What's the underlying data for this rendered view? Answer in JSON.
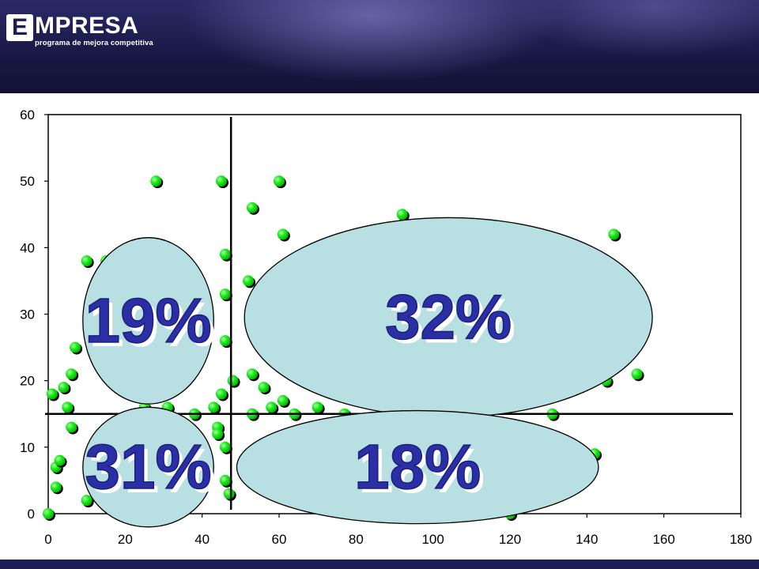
{
  "header": {
    "logo_letter": "E",
    "logo_word": "MPRESA",
    "logo_subtitle": "programa de mejora competitiva"
  },
  "colors": {
    "header_bg": "#1c1b4c",
    "point": "#00ee00",
    "ellipse_fill": "#b8dfe2",
    "percent_label": "#2b2fa6"
  },
  "chart_data": {
    "type": "scatter",
    "title": "",
    "xlabel": "",
    "ylabel": "",
    "xlim": [
      0,
      180
    ],
    "ylim": [
      0,
      60
    ],
    "x_ticks": [
      "0",
      "20",
      "40",
      "60",
      "80",
      "100",
      "120",
      "140",
      "160",
      "180"
    ],
    "y_ticks": [
      "0",
      "10",
      "20",
      "30",
      "40",
      "50",
      "60"
    ],
    "grid": false,
    "reference_lines": {
      "x": 47.5,
      "y": 15
    },
    "points": [
      [
        28,
        50
      ],
      [
        45,
        50
      ],
      [
        60,
        50
      ],
      [
        53,
        46
      ],
      [
        92,
        45
      ],
      [
        61,
        42
      ],
      [
        147,
        42
      ],
      [
        10,
        38
      ],
      [
        15,
        38
      ],
      [
        46,
        39
      ],
      [
        52,
        35
      ],
      [
        46,
        33
      ],
      [
        7,
        25
      ],
      [
        46,
        26
      ],
      [
        1,
        18
      ],
      [
        4,
        19
      ],
      [
        6,
        21
      ],
      [
        5,
        16
      ],
      [
        6,
        13
      ],
      [
        2,
        7
      ],
      [
        3,
        8
      ],
      [
        2,
        4
      ],
      [
        0,
        0
      ],
      [
        25,
        16
      ],
      [
        31,
        16
      ],
      [
        38,
        15
      ],
      [
        43,
        16
      ],
      [
        45,
        18
      ],
      [
        48,
        20
      ],
      [
        44,
        13
      ],
      [
        44,
        12
      ],
      [
        53,
        21
      ],
      [
        56,
        19
      ],
      [
        53,
        15
      ],
      [
        58,
        16
      ],
      [
        61,
        17
      ],
      [
        64,
        15
      ],
      [
        70,
        16
      ],
      [
        77,
        15
      ],
      [
        46,
        10
      ],
      [
        47,
        3
      ],
      [
        46,
        5
      ],
      [
        10,
        2
      ],
      [
        131,
        15
      ],
      [
        145,
        20
      ],
      [
        153,
        21
      ],
      [
        130,
        12
      ],
      [
        142,
        9
      ],
      [
        120,
        0
      ]
    ],
    "segments": [
      {
        "label": "19%",
        "cx": 26,
        "cy": 29,
        "rx": 17,
        "ry": 12.5
      },
      {
        "label": "32%",
        "cx": 104,
        "cy": 29.5,
        "rx": 53,
        "ry": 15
      },
      {
        "label": "31%",
        "cx": 26,
        "cy": 7,
        "rx": 17,
        "ry": 9
      },
      {
        "label": "18%",
        "cx": 96,
        "cy": 7,
        "rx": 47,
        "ry": 8.5
      }
    ]
  }
}
